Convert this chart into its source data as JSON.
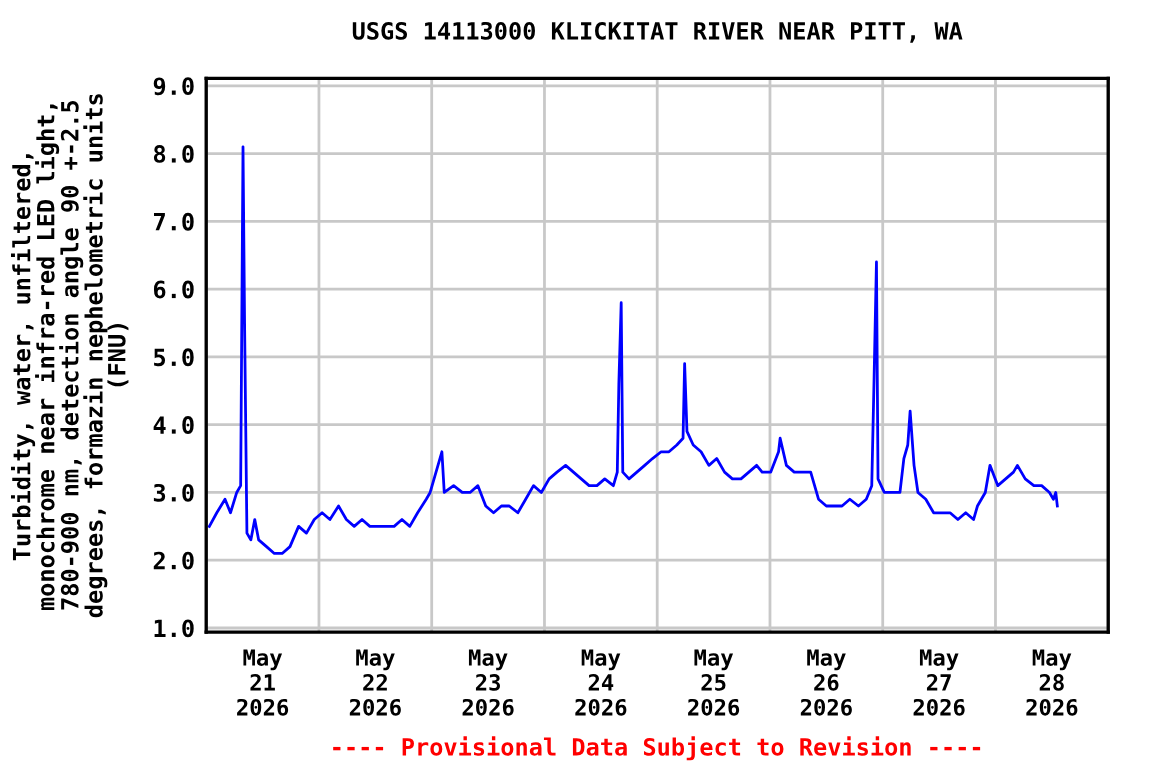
{
  "chart_data": {
    "type": "line",
    "title": "USGS 14113000 KLICKITAT RIVER NEAR PITT, WA",
    "ylabel": "Turbidity, water, unfiltered,\nmonochrome near infra-red LED light,\n780-900 nm, detection angle 90 +-2.5\ndegrees, formazin nephelometric units\n(FNU)",
    "annotations": [
      "---- Provisional Data Subject to Revision ----"
    ],
    "x": [
      "2026-05-21T00:40",
      "2026-05-21T02:15",
      "2026-05-21T04:00",
      "2026-05-21T05:10",
      "2026-05-21T06:30",
      "2026-05-21T07:20",
      "2026-05-21T07:50",
      "2026-05-21T08:10",
      "2026-05-21T08:40",
      "2026-05-21T09:30",
      "2026-05-21T10:20",
      "2026-05-21T11:10",
      "2026-05-21T12:50",
      "2026-05-21T14:30",
      "2026-05-21T16:10",
      "2026-05-21T17:50",
      "2026-05-21T19:40",
      "2026-05-21T21:20",
      "2026-05-21T23:00",
      "2026-05-22T00:40",
      "2026-05-22T02:20",
      "2026-05-22T04:10",
      "2026-05-22T05:50",
      "2026-05-22T07:30",
      "2026-05-22T09:10",
      "2026-05-22T10:50",
      "2026-05-22T12:40",
      "2026-05-22T14:20",
      "2026-05-22T16:00",
      "2026-05-22T17:40",
      "2026-05-22T19:20",
      "2026-05-22T21:00",
      "2026-05-22T22:50",
      "2026-05-22T23:40",
      "2026-05-23T02:10",
      "2026-05-23T02:40",
      "2026-05-23T04:40",
      "2026-05-23T06:30",
      "2026-05-23T08:10",
      "2026-05-23T09:50",
      "2026-05-23T11:30",
      "2026-05-23T13:10",
      "2026-05-23T14:50",
      "2026-05-23T16:30",
      "2026-05-23T18:20",
      "2026-05-23T20:00",
      "2026-05-23T21:40",
      "2026-05-23T23:20",
      "2026-05-24T01:00",
      "2026-05-24T02:40",
      "2026-05-24T04:30",
      "2026-05-24T06:10",
      "2026-05-24T07:50",
      "2026-05-24T09:30",
      "2026-05-24T11:10",
      "2026-05-24T12:50",
      "2026-05-24T14:40",
      "2026-05-24T15:30",
      "2026-05-24T15:50",
      "2026-05-24T16:20",
      "2026-05-24T16:40",
      "2026-05-24T18:00",
      "2026-05-24T19:40",
      "2026-05-24T21:20",
      "2026-05-24T23:00",
      "2026-05-25T00:50",
      "2026-05-25T02:30",
      "2026-05-25T04:10",
      "2026-05-25T05:30",
      "2026-05-25T05:50",
      "2026-05-25T06:20",
      "2026-05-25T07:40",
      "2026-05-25T09:20",
      "2026-05-25T11:00",
      "2026-05-25T12:40",
      "2026-05-25T14:20",
      "2026-05-25T16:00",
      "2026-05-25T17:50",
      "2026-05-25T19:30",
      "2026-05-25T21:10",
      "2026-05-25T22:20",
      "2026-05-26T00:10",
      "2026-05-26T01:50",
      "2026-05-26T02:10",
      "2026-05-26T03:30",
      "2026-05-26T05:10",
      "2026-05-26T06:50",
      "2026-05-26T08:40",
      "2026-05-26T10:20",
      "2026-05-26T12:00",
      "2026-05-26T13:40",
      "2026-05-26T15:20",
      "2026-05-26T17:00",
      "2026-05-26T18:50",
      "2026-05-26T20:30",
      "2026-05-26T21:40",
      "2026-05-26T22:10",
      "2026-05-26T22:40",
      "2026-05-26T23:00",
      "2026-05-27T00:20",
      "2026-05-27T02:00",
      "2026-05-27T03:40",
      "2026-05-27T04:30",
      "2026-05-27T05:20",
      "2026-05-27T05:50",
      "2026-05-27T06:40",
      "2026-05-27T07:30",
      "2026-05-27T09:10",
      "2026-05-27T10:50",
      "2026-05-27T12:40",
      "2026-05-27T14:20",
      "2026-05-27T16:00",
      "2026-05-27T17:40",
      "2026-05-27T19:20",
      "2026-05-27T20:10",
      "2026-05-27T21:50",
      "2026-05-27T22:50",
      "2026-05-28T00:30",
      "2026-05-28T02:10",
      "2026-05-28T03:50",
      "2026-05-28T04:40",
      "2026-05-28T06:20",
      "2026-05-28T08:10",
      "2026-05-28T09:50",
      "2026-05-28T11:30",
      "2026-05-28T12:20",
      "2026-05-28T12:50",
      "2026-05-28T13:10"
    ],
    "series": [
      {
        "color": "#0000ff",
        "values": [
          2.5,
          2.7,
          2.9,
          2.7,
          3.0,
          3.1,
          8.1,
          5.5,
          2.4,
          2.3,
          2.6,
          2.3,
          2.2,
          2.1,
          2.1,
          2.2,
          2.5,
          2.4,
          2.6,
          2.7,
          2.6,
          2.8,
          2.6,
          2.5,
          2.6,
          2.5,
          2.5,
          2.5,
          2.5,
          2.6,
          2.5,
          2.7,
          2.9,
          3.0,
          3.6,
          3.0,
          3.1,
          3.0,
          3.0,
          3.1,
          2.8,
          2.7,
          2.8,
          2.8,
          2.7,
          2.9,
          3.1,
          3.0,
          3.2,
          3.3,
          3.4,
          3.3,
          3.2,
          3.1,
          3.1,
          3.2,
          3.1,
          3.3,
          4.6,
          5.8,
          3.3,
          3.2,
          3.3,
          3.4,
          3.5,
          3.6,
          3.6,
          3.7,
          3.8,
          4.9,
          3.9,
          3.7,
          3.6,
          3.4,
          3.5,
          3.3,
          3.2,
          3.2,
          3.3,
          3.4,
          3.3,
          3.3,
          3.6,
          3.8,
          3.4,
          3.3,
          3.3,
          3.3,
          2.9,
          2.8,
          2.8,
          2.8,
          2.9,
          2.8,
          2.9,
          3.1,
          4.7,
          6.4,
          3.2,
          3.0,
          3.0,
          3.0,
          3.5,
          3.7,
          4.2,
          3.4,
          3.0,
          2.9,
          2.7,
          2.7,
          2.7,
          2.6,
          2.7,
          2.6,
          2.8,
          3.0,
          3.4,
          3.1,
          3.2,
          3.3,
          3.4,
          3.2,
          3.1,
          3.1,
          3.0,
          2.9,
          3.0,
          2.8
        ]
      }
    ],
    "xlim": [
      "2026-05-21T00:00",
      "2026-05-29T00:00"
    ],
    "xticks": [
      {
        "value": "2026-05-21T00:00",
        "label": null
      },
      {
        "value": "2026-05-21T12:00",
        "label": "May\n21\n2026"
      },
      {
        "value": "2026-05-22T00:00",
        "label": null
      },
      {
        "value": "2026-05-22T12:00",
        "label": "May\n22\n2026"
      },
      {
        "value": "2026-05-23T00:00",
        "label": null
      },
      {
        "value": "2026-05-23T12:00",
        "label": "May\n23\n2026"
      },
      {
        "value": "2026-05-24T00:00",
        "label": null
      },
      {
        "value": "2026-05-24T12:00",
        "label": "May\n24\n2026"
      },
      {
        "value": "2026-05-25T00:00",
        "label": null
      },
      {
        "value": "2026-05-25T12:00",
        "label": "May\n25\n2026"
      },
      {
        "value": "2026-05-26T00:00",
        "label": null
      },
      {
        "value": "2026-05-26T12:00",
        "label": "May\n26\n2026"
      },
      {
        "value": "2026-05-27T00:00",
        "label": null
      },
      {
        "value": "2026-05-27T12:00",
        "label": "May\n27\n2026"
      },
      {
        "value": "2026-05-28T00:00",
        "label": null
      },
      {
        "value": "2026-05-28T12:00",
        "label": "May\n28\n2026"
      },
      {
        "value": "2026-05-29T00:00",
        "label": null
      }
    ],
    "ylim": [
      0.94,
      9.11
    ],
    "yticks": [
      {
        "value": 1,
        "label": "1.0"
      },
      {
        "value": 2,
        "label": "2.0"
      },
      {
        "value": 3,
        "label": "3.0"
      },
      {
        "value": 4,
        "label": "4.0"
      },
      {
        "value": 5,
        "label": "5.0"
      },
      {
        "value": 6,
        "label": "6.0"
      },
      {
        "value": 7,
        "label": "7.0"
      },
      {
        "value": 8,
        "label": "8.0"
      },
      {
        "value": 9,
        "label": "9.0"
      }
    ],
    "grid": true,
    "legend": false,
    "marker": "none",
    "line_style": "solid"
  }
}
